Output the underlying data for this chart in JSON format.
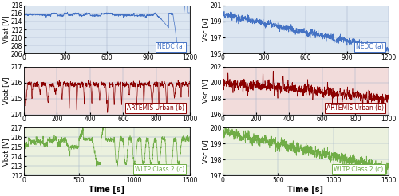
{
  "left_col": {
    "plots": [
      {
        "label": "NEDC (a)",
        "color": "#4472C4",
        "ylabel": "Vbat [V]",
        "xlim": [
          0,
          1200
        ],
        "ylim": [
          206,
          218
        ],
        "yticks": [
          206,
          208,
          210,
          212,
          214,
          216,
          218
        ],
        "xticks": [
          0,
          300,
          600,
          900,
          1200
        ],
        "bg": "#dce6f1"
      },
      {
        "label": "ARTEMIS Urban (b)",
        "color": "#8B0000",
        "ylabel": "Vbat [V]",
        "xlim": [
          0,
          1000
        ],
        "ylim": [
          214,
          217
        ],
        "yticks": [
          214,
          215,
          216,
          217
        ],
        "xticks": [
          0,
          200,
          400,
          600,
          800,
          1000
        ],
        "bg": "#f2dcdb"
      },
      {
        "label": "WLTP Class 2 (c)",
        "color": "#70AD47",
        "ylabel": "Vbat [V]",
        "xlim": [
          0,
          1500
        ],
        "ylim": [
          212,
          217
        ],
        "yticks": [
          212,
          213,
          214,
          215,
          216,
          217
        ],
        "xticks": [
          0,
          500,
          1000,
          1500
        ],
        "bg": "#ebf1de"
      }
    ]
  },
  "right_col": {
    "plots": [
      {
        "label": "NEDC (a)",
        "color": "#4472C4",
        "ylabel": "Vsc [V]",
        "xlim": [
          0,
          1200
        ],
        "ylim": [
          195,
          201
        ],
        "yticks": [
          195,
          197,
          199,
          201
        ],
        "xticks": [
          0,
          300,
          600,
          900,
          1200
        ],
        "bg": "#dce6f1"
      },
      {
        "label": "ARTEMIS Urban (b)",
        "color": "#8B0000",
        "ylabel": "Vsc [V]",
        "xlim": [
          0,
          1000
        ],
        "ylim": [
          196,
          202
        ],
        "yticks": [
          196,
          198,
          200,
          202
        ],
        "xticks": [
          0,
          200,
          400,
          600,
          800,
          1000
        ],
        "bg": "#f2dcdb"
      },
      {
        "label": "WLTP Class 2 (c)",
        "color": "#70AD47",
        "ylabel": "Vsc [V]",
        "xlim": [
          0,
          1500
        ],
        "ylim": [
          197,
          200
        ],
        "yticks": [
          197,
          198,
          199,
          200
        ],
        "xticks": [
          0,
          500,
          1000,
          1500
        ],
        "bg": "#ebf1de"
      }
    ]
  },
  "xlabel": "Time [s]",
  "grid_color": "#a0b0c8",
  "label_fontsize": 6,
  "tick_fontsize": 5.5,
  "annotation_fontsize": 5.5,
  "line_width": 0.5
}
